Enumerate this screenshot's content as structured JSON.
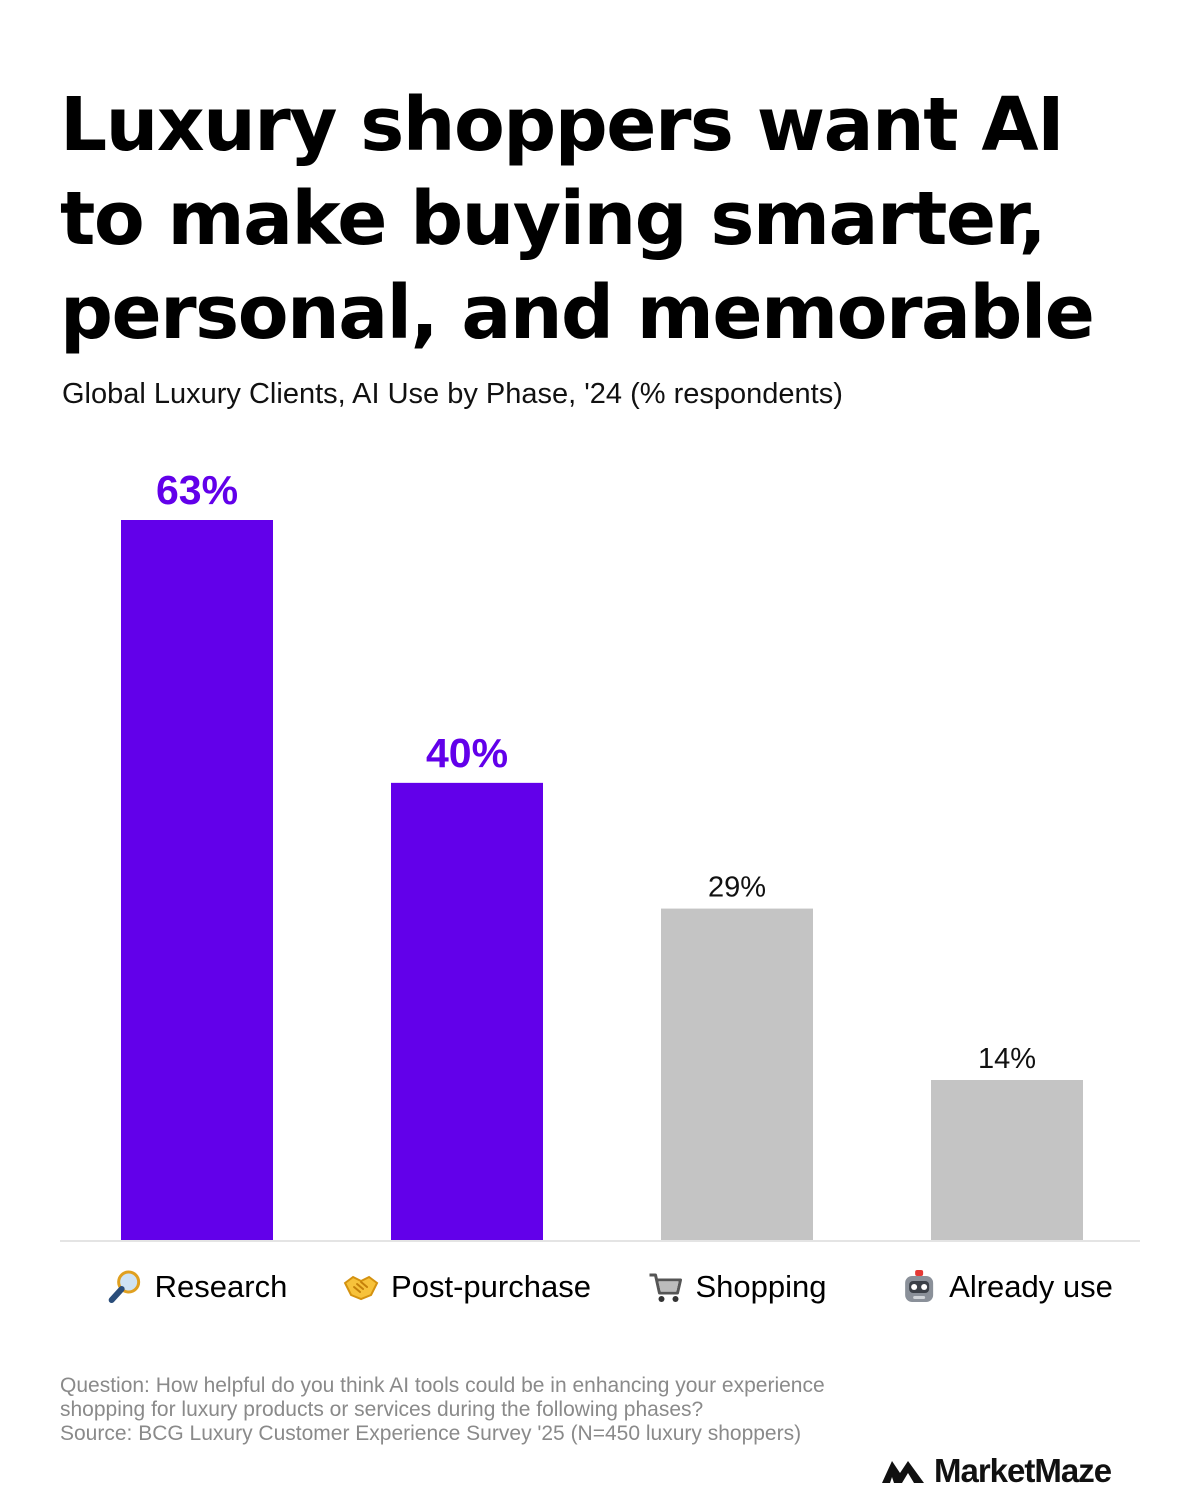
{
  "title": "Luxury shoppers want AI to make buying smarter, personal, and memorable",
  "subtitle": "Global Luxury Clients, AI Use by Phase, '24 (% respondents)",
  "chart_data": {
    "type": "bar",
    "categories": [
      "Research",
      "Post-purchase",
      "Shopping",
      "Already use"
    ],
    "values": [
      63,
      40,
      29,
      14
    ],
    "value_labels": [
      "63%",
      "40%",
      "29%",
      "14%"
    ],
    "ylim": [
      0,
      63
    ],
    "highlight": [
      true,
      true,
      false,
      false
    ],
    "icons": [
      "magnifying-glass-icon",
      "handshake-icon",
      "shopping-cart-icon",
      "robot-icon"
    ],
    "colors": {
      "highlight": "#6200ea",
      "muted": "#c4c4c4",
      "axis": "#e4e4e4"
    }
  },
  "footnote": {
    "question": "Question: How helpful do you think AI tools could be in enhancing your experience shopping for luxury products or services during the following phases?",
    "source": "Source: BCG Luxury Customer Experience Survey '25 (N=450 luxury shoppers)"
  },
  "brand": {
    "name": "MarketMaze",
    "icon": "marketmaze-logo-icon"
  }
}
